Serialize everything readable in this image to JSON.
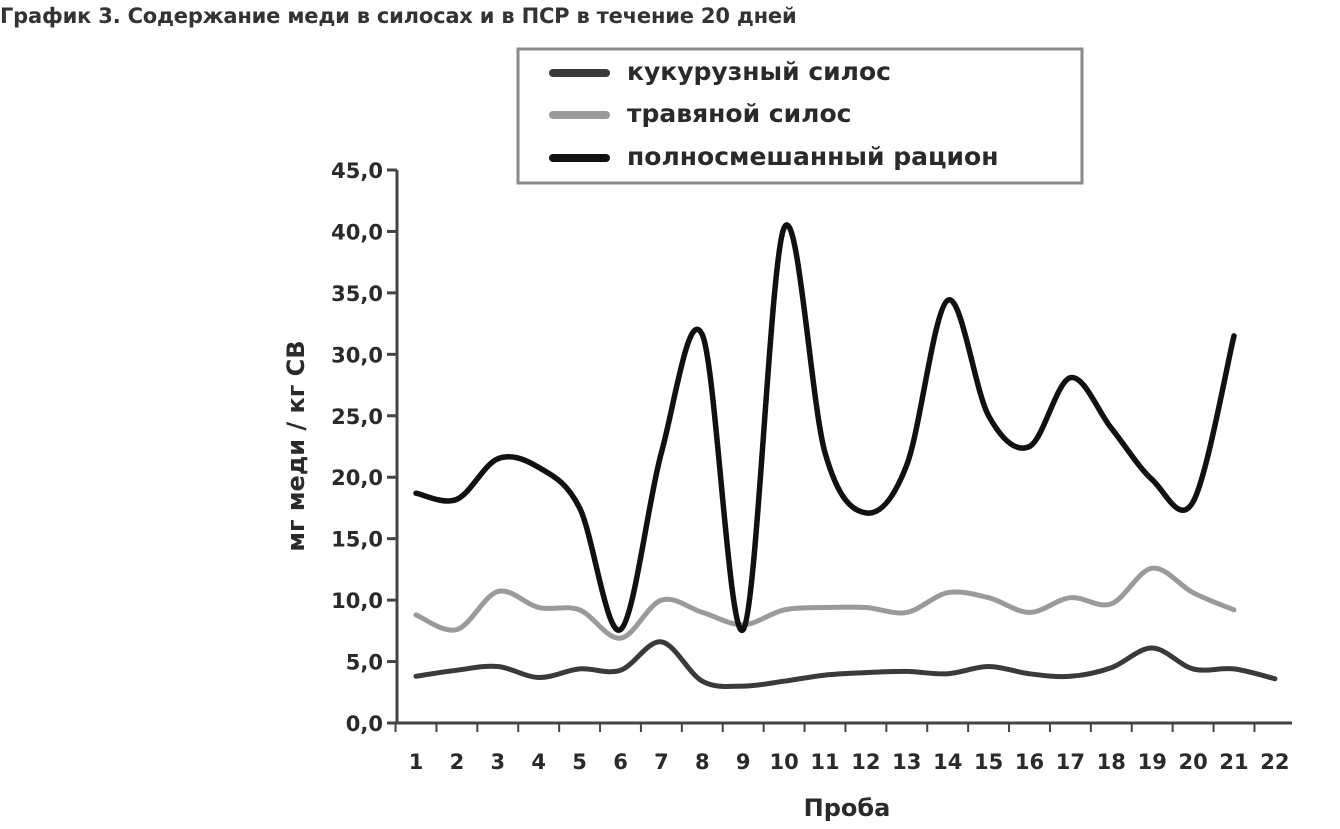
{
  "title": "График 3. Содержание меди в силосах и в ПСР в течение 20 дней",
  "colors": {
    "axis": "#444444",
    "legend_border": "#8a8a8a"
  },
  "chart_data": {
    "type": "line",
    "xlabel": "Проба",
    "ylabel": "мг меди / кг СВ",
    "ylim": [
      0,
      45
    ],
    "y_ticks": [
      "0,0",
      "5,0",
      "10,0",
      "15,0",
      "20,0",
      "25,0",
      "30,0",
      "35,0",
      "40,0",
      "45,0"
    ],
    "categories": [
      "1",
      "2",
      "3",
      "4",
      "5",
      "6",
      "7",
      "8",
      "9",
      "10",
      "11",
      "12",
      "13",
      "14",
      "15",
      "16",
      "17",
      "18",
      "19",
      "20",
      "21",
      "22"
    ],
    "grid": false,
    "legend_position": "top",
    "series": [
      {
        "name": "кукурузный силос",
        "color": "#3a3a3a",
        "values": [
          3.8,
          4.3,
          4.6,
          3.7,
          4.4,
          4.3,
          6.6,
          3.4,
          3.0,
          3.4,
          3.9,
          4.1,
          4.2,
          4.0,
          4.6,
          4.0,
          3.8,
          4.5,
          6.1,
          4.4,
          4.4,
          3.6
        ]
      },
      {
        "name": "травяной силос",
        "color": "#9a9a9a",
        "values": [
          8.8,
          7.6,
          10.7,
          9.4,
          9.2,
          6.9,
          10.0,
          9.0,
          8.0,
          9.2,
          9.4,
          9.4,
          9.0,
          10.6,
          10.2,
          9.0,
          10.2,
          9.7,
          12.6,
          10.6,
          9.2,
          null
        ]
      },
      {
        "name": "полносмешанный рацион",
        "color": "#111111",
        "values": [
          18.7,
          18.2,
          21.5,
          20.8,
          17.5,
          7.6,
          22.0,
          31.6,
          7.6,
          40.3,
          22.0,
          17.1,
          21.0,
          34.4,
          25.0,
          22.5,
          28.1,
          24.0,
          19.8,
          18.0,
          31.5,
          null
        ]
      }
    ]
  }
}
